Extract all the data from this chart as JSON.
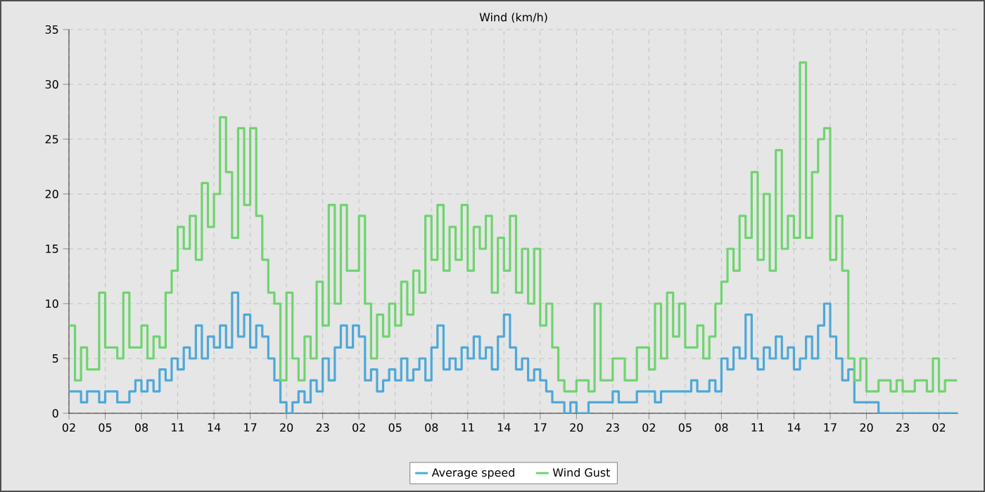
{
  "chart_data": {
    "type": "step",
    "title": "Wind (km/h)",
    "ylim": [
      0,
      35
    ],
    "yticks": [
      0,
      5,
      10,
      15,
      20,
      25,
      30,
      35
    ],
    "categories": [
      "02",
      null,
      null,
      null,
      null,
      null,
      "05",
      null,
      null,
      null,
      null,
      null,
      "08",
      null,
      null,
      null,
      null,
      null,
      "11",
      null,
      null,
      null,
      null,
      null,
      "14",
      null,
      null,
      null,
      null,
      null,
      "17",
      null,
      null,
      null,
      null,
      null,
      "20",
      null,
      null,
      null,
      null,
      null,
      "23",
      null,
      null,
      null,
      null,
      null,
      "02",
      null,
      null,
      null,
      null,
      null,
      "05",
      null,
      null,
      null,
      null,
      null,
      "08",
      null,
      null,
      null,
      null,
      null,
      "11",
      null,
      null,
      null,
      null,
      null,
      "14",
      null,
      null,
      null,
      null,
      null,
      "17",
      null,
      null,
      null,
      null,
      null,
      "20",
      null,
      null,
      null,
      null,
      null,
      "23",
      null,
      null,
      null,
      null,
      null,
      "02",
      null,
      null,
      null,
      null,
      null,
      "05",
      null,
      null,
      null,
      null,
      null,
      "08",
      null,
      null,
      null,
      null,
      null,
      "11",
      null,
      null,
      null,
      null,
      null,
      "14",
      null,
      null,
      null,
      null,
      null,
      "17",
      null,
      null,
      null,
      null,
      null,
      "20",
      null,
      null,
      null,
      null,
      null,
      "23",
      null,
      null,
      null,
      null,
      null,
      "02",
      null,
      null,
      null
    ],
    "grid": true,
    "legend": "bottom",
    "line_style": "solid",
    "series": [
      {
        "name": "Average speed",
        "color": "#4ea8d8",
        "values": [
          2,
          2,
          1,
          2,
          2,
          1,
          2,
          2,
          1,
          1,
          2,
          3,
          2,
          3,
          2,
          4,
          3,
          5,
          4,
          6,
          5,
          8,
          5,
          7,
          6,
          8,
          6,
          11,
          7,
          9,
          6,
          8,
          7,
          5,
          3,
          1,
          0,
          1,
          2,
          1,
          3,
          2,
          5,
          3,
          6,
          8,
          6,
          8,
          7,
          3,
          4,
          2,
          3,
          4,
          3,
          5,
          3,
          4,
          5,
          3,
          6,
          8,
          4,
          5,
          4,
          6,
          5,
          7,
          5,
          6,
          4,
          7,
          9,
          6,
          4,
          5,
          3,
          4,
          3,
          2,
          1,
          1,
          0,
          1,
          0,
          0,
          1,
          1,
          1,
          1,
          2,
          1,
          1,
          1,
          2,
          2,
          2,
          1,
          2,
          2,
          2,
          2,
          2,
          3,
          2,
          2,
          3,
          2,
          5,
          4,
          6,
          5,
          9,
          5,
          4,
          6,
          5,
          7,
          5,
          6,
          4,
          5,
          7,
          5,
          8,
          10,
          7,
          5,
          3,
          4,
          1,
          1,
          1,
          1,
          0,
          0,
          0,
          0,
          0,
          0,
          0,
          0,
          0,
          0,
          0,
          0,
          0,
          0
        ]
      },
      {
        "name": "Wind Gust",
        "color": "#6fd46f",
        "values": [
          8,
          3,
          6,
          4,
          4,
          11,
          6,
          6,
          5,
          11,
          6,
          6,
          8,
          5,
          7,
          6,
          11,
          13,
          17,
          15,
          18,
          14,
          21,
          17,
          20,
          27,
          22,
          16,
          26,
          19,
          26,
          18,
          14,
          11,
          10,
          3,
          11,
          5,
          3,
          7,
          5,
          12,
          8,
          19,
          10,
          19,
          13,
          13,
          18,
          10,
          5,
          9,
          7,
          10,
          8,
          12,
          9,
          13,
          11,
          18,
          14,
          19,
          13,
          17,
          14,
          19,
          13,
          17,
          15,
          18,
          11,
          16,
          13,
          18,
          11,
          15,
          10,
          15,
          8,
          10,
          6,
          3,
          2,
          2,
          3,
          3,
          2,
          10,
          3,
          3,
          5,
          5,
          3,
          3,
          6,
          6,
          4,
          10,
          5,
          11,
          7,
          10,
          6,
          6,
          8,
          5,
          7,
          10,
          12,
          15,
          13,
          18,
          16,
          22,
          14,
          20,
          13,
          24,
          15,
          18,
          16,
          32,
          16,
          22,
          25,
          26,
          14,
          18,
          13,
          5,
          3,
          5,
          2,
          2,
          3,
          3,
          2,
          3,
          2,
          2,
          3,
          3,
          2,
          5,
          2,
          3,
          3,
          3
        ]
      }
    ]
  }
}
